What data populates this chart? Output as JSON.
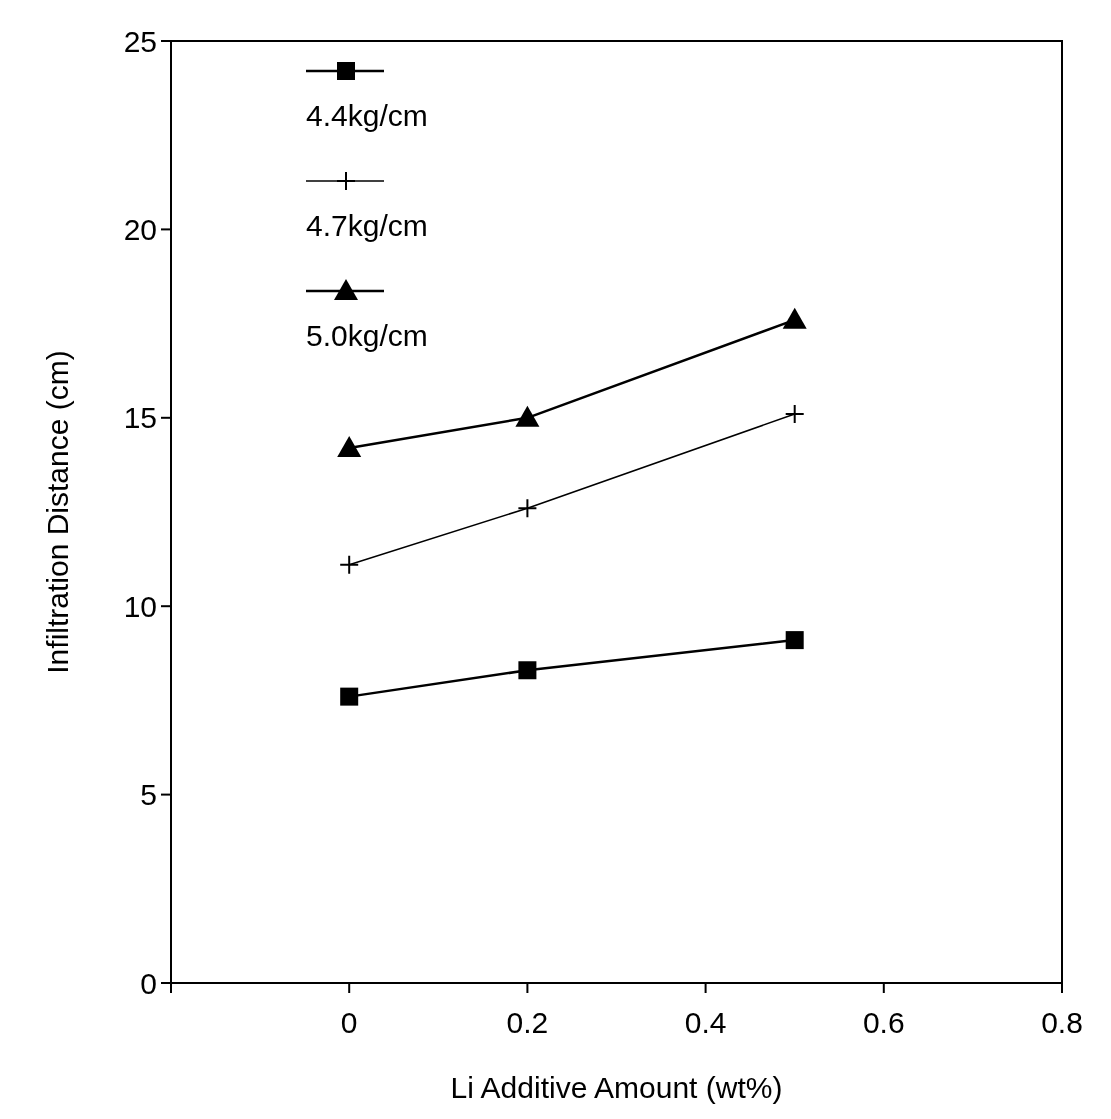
{
  "chart_data": {
    "type": "line",
    "xlabel": "Li Additive Amount (wt%)",
    "ylabel": "Infiltration Distance (cm)",
    "xlim": [
      -0.2,
      0.8
    ],
    "xticks": [
      {
        "value": -0.2,
        "label": null
      },
      0,
      0.2,
      0.4,
      0.6,
      0.8
    ],
    "ylim": [
      0,
      25
    ],
    "yticks": [
      0,
      5,
      10,
      15,
      20,
      25
    ],
    "grid": false,
    "legend": "top left",
    "line_style": "solid",
    "series": [
      {
        "name": "4.4kg/cm",
        "color": "#000000",
        "marker": "square",
        "x": [
          0,
          0.2,
          0.5
        ],
        "values": [
          7.6,
          8.3,
          9.1
        ]
      },
      {
        "name": "4.7kg/cm",
        "color": "#000000",
        "marker": "cross",
        "x": [
          0,
          0.2,
          0.5
        ],
        "values": [
          11.1,
          12.6,
          15.1
        ]
      },
      {
        "name": "5.0kg/cm",
        "color": "#000000",
        "marker": "triangle",
        "x": [
          0,
          0.2,
          0.5
        ],
        "values": [
          14.2,
          15.0,
          17.6
        ]
      }
    ]
  }
}
